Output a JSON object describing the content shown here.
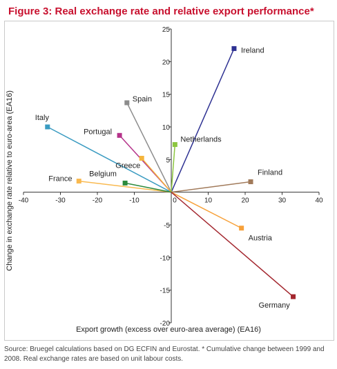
{
  "title": "Figure 3: Real exchange rate and relative export performance*",
  "source": "Source: Bruegel calculations based on DG ECFIN and Eurostat. * Cumulative change between 1999 and 2008. Real exchange rates are based on unit labour costs.",
  "chart_data": {
    "type": "scatter",
    "title": "Figure 3: Real exchange rate and relative export performance*",
    "xlabel": "Export growth (excess over euro-area average) (EA16)",
    "ylabel": "Change in exchange rate relative to euro-area (EA16)",
    "xlim": [
      -40,
      40
    ],
    "ylim": [
      -20,
      25
    ],
    "xticks": [
      -40,
      -30,
      -20,
      -10,
      0,
      10,
      20,
      30,
      40
    ],
    "yticks": [
      -20,
      -15,
      -10,
      -5,
      0,
      5,
      10,
      15,
      20,
      25
    ],
    "grid": false,
    "points": [
      {
        "label": "Ireland",
        "x": 17,
        "y": 22,
        "color": "#2e3192"
      },
      {
        "label": "Spain",
        "x": -12,
        "y": 13.7,
        "color": "#8c8c8c"
      },
      {
        "label": "Italy",
        "x": -33.5,
        "y": 10,
        "color": "#3a9bc1"
      },
      {
        "label": "Portugal",
        "x": -14,
        "y": 8.7,
        "color": "#b5338a"
      },
      {
        "label": "Netherlands",
        "x": 1,
        "y": 7.3,
        "color": "#8cc63f"
      },
      {
        "label": "Greece",
        "x": -8,
        "y": 5.2,
        "color": "#f4b43c"
      },
      {
        "label": "Finland",
        "x": 21.5,
        "y": 1.6,
        "color": "#a17a5a"
      },
      {
        "label": "France",
        "x": -25,
        "y": 1.7,
        "color": "#f9b94f"
      },
      {
        "label": "Belgium",
        "x": -12.5,
        "y": 1.4,
        "color": "#2c8a3c"
      },
      {
        "label": "Austria",
        "x": 19,
        "y": -5.5,
        "color": "#f7a13a"
      },
      {
        "label": "Germany",
        "x": 33,
        "y": -16,
        "color": "#a3262e"
      }
    ]
  }
}
